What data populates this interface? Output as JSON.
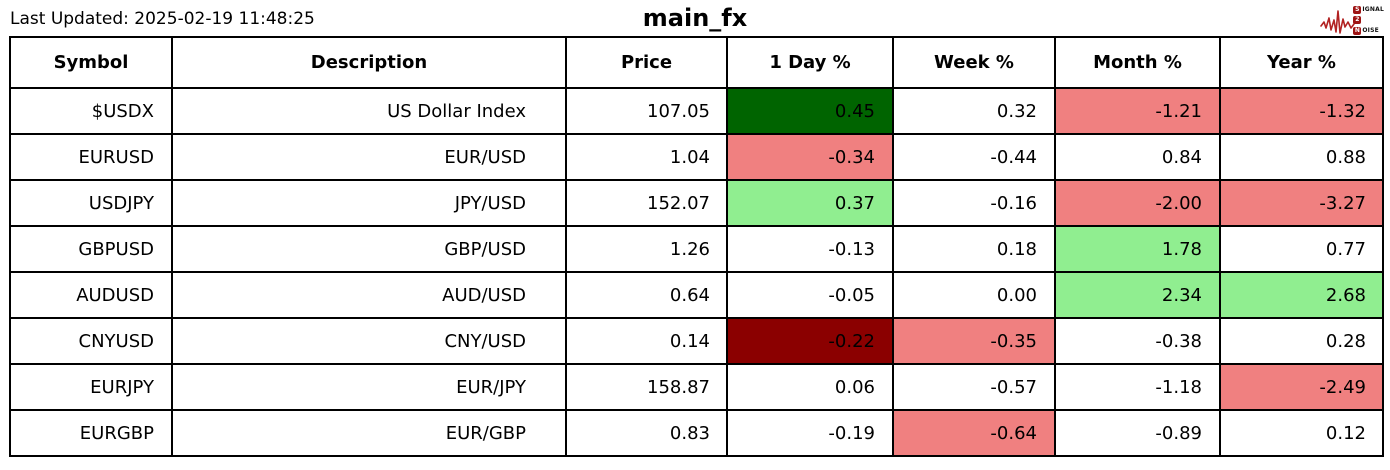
{
  "header": {
    "last_updated": "Last Updated: 2025-02-19 11:48:25",
    "title": "main_fx",
    "logo": {
      "line1_initial": "S",
      "line1_rest": "IGNAL",
      "line2_initial": "2",
      "line2_rest": "",
      "line3_initial": "N",
      "line3_rest": "OISE",
      "accent": "#b22222"
    }
  },
  "colors": {
    "strong_up": "#006400",
    "up": "#90ee90",
    "down": "#f08080",
    "strong_down": "#8b0000",
    "neutral": "#ffffff"
  },
  "chart_data": {
    "type": "table",
    "title": "main_fx",
    "columns": [
      "Symbol",
      "Description",
      "Price",
      "1 Day %",
      "Week %",
      "Month %",
      "Year %"
    ],
    "rows": [
      {
        "cells": [
          {
            "text": "$USDX"
          },
          {
            "text": "US Dollar Index"
          },
          {
            "text": "107.05"
          },
          {
            "text": "0.45",
            "bg": "strong_up"
          },
          {
            "text": "0.32"
          },
          {
            "text": "-1.21",
            "bg": "down"
          },
          {
            "text": "-1.32",
            "bg": "down"
          }
        ]
      },
      {
        "cells": [
          {
            "text": "EURUSD"
          },
          {
            "text": "EUR/USD"
          },
          {
            "text": "1.04"
          },
          {
            "text": "-0.34",
            "bg": "down"
          },
          {
            "text": "-0.44"
          },
          {
            "text": "0.84"
          },
          {
            "text": "0.88"
          }
        ]
      },
      {
        "cells": [
          {
            "text": "USDJPY"
          },
          {
            "text": "JPY/USD"
          },
          {
            "text": "152.07"
          },
          {
            "text": "0.37",
            "bg": "up"
          },
          {
            "text": "-0.16"
          },
          {
            "text": "-2.00",
            "bg": "down"
          },
          {
            "text": "-3.27",
            "bg": "down"
          }
        ]
      },
      {
        "cells": [
          {
            "text": "GBPUSD"
          },
          {
            "text": "GBP/USD"
          },
          {
            "text": "1.26"
          },
          {
            "text": "-0.13"
          },
          {
            "text": "0.18"
          },
          {
            "text": "1.78",
            "bg": "up"
          },
          {
            "text": "0.77"
          }
        ]
      },
      {
        "cells": [
          {
            "text": "AUDUSD"
          },
          {
            "text": "AUD/USD"
          },
          {
            "text": "0.64"
          },
          {
            "text": "-0.05"
          },
          {
            "text": "0.00"
          },
          {
            "text": "2.34",
            "bg": "up"
          },
          {
            "text": "2.68",
            "bg": "up"
          }
        ]
      },
      {
        "cells": [
          {
            "text": "CNYUSD"
          },
          {
            "text": "CNY/USD"
          },
          {
            "text": "0.14"
          },
          {
            "text": "-0.22",
            "bg": "strong_down"
          },
          {
            "text": "-0.35",
            "bg": "down"
          },
          {
            "text": "-0.38"
          },
          {
            "text": "0.28"
          }
        ]
      },
      {
        "cells": [
          {
            "text": "EURJPY"
          },
          {
            "text": "EUR/JPY"
          },
          {
            "text": "158.87"
          },
          {
            "text": "0.06"
          },
          {
            "text": "-0.57"
          },
          {
            "text": "-1.18"
          },
          {
            "text": "-2.49",
            "bg": "down"
          }
        ]
      },
      {
        "cells": [
          {
            "text": "EURGBP"
          },
          {
            "text": "EUR/GBP"
          },
          {
            "text": "0.83"
          },
          {
            "text": "-0.19"
          },
          {
            "text": "-0.64",
            "bg": "down"
          },
          {
            "text": "-0.89"
          },
          {
            "text": "0.12"
          }
        ]
      }
    ]
  }
}
